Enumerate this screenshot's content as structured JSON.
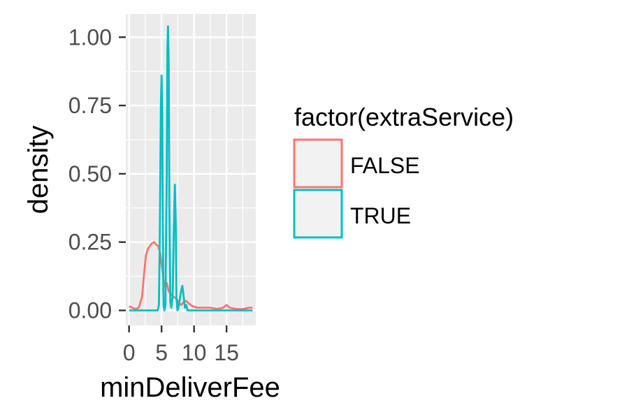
{
  "chart_data": {
    "type": "line",
    "xlabel": "minDeliverFee",
    "ylabel": "density",
    "xlim": [
      -0.5,
      19.5
    ],
    "ylim": [
      -0.055,
      1.085
    ],
    "xticks": [
      0,
      5,
      10,
      15
    ],
    "xtick_labels": [
      "0",
      "5",
      "10",
      "15"
    ],
    "yticks": [
      0,
      0.25,
      0.5,
      0.75,
      1.0
    ],
    "ytick_labels": [
      "0.00",
      "0.25",
      "0.50",
      "0.75",
      "1.00"
    ],
    "grid": true,
    "legend": {
      "title": "factor(extraService)",
      "position": "right",
      "entries": [
        "FALSE",
        "TRUE"
      ]
    },
    "series": [
      {
        "name": "FALSE",
        "color": "#F8766D",
        "x": [
          0,
          0.5,
          1,
          1.5,
          2,
          2.3,
          2.6,
          2.9,
          3.2,
          3.5,
          3.9,
          4.2,
          4.5,
          4.8,
          5.1,
          5.4,
          5.8,
          6.1,
          6.4,
          6.8,
          7.2,
          7.6,
          8.0,
          8.4,
          8.8,
          9.2,
          9.8,
          10.5,
          11.5,
          12.5,
          13.5,
          14.5,
          15.0,
          15.5,
          16.5,
          17.5,
          18.5,
          19.0
        ],
        "y": [
          0.015,
          0.01,
          0.005,
          0.01,
          0.05,
          0.13,
          0.2,
          0.225,
          0.235,
          0.245,
          0.25,
          0.24,
          0.235,
          0.21,
          0.15,
          0.09,
          0.1,
          0.07,
          0.06,
          0.05,
          0.045,
          0.03,
          0.02,
          0.03,
          0.035,
          0.025,
          0.015,
          0.01,
          0.01,
          0.01,
          0.005,
          0.01,
          0.02,
          0.01,
          0.005,
          0.005,
          0.01,
          0.01
        ]
      },
      {
        "name": "TRUE",
        "color": "#00BFC4",
        "x": [
          0,
          4.4,
          4.6,
          4.75,
          4.9,
          5.0,
          5.1,
          5.2,
          5.3,
          5.45,
          5.6,
          5.8,
          5.9,
          6.0,
          6.1,
          6.2,
          6.35,
          6.5,
          6.7,
          6.9,
          7.05,
          7.2,
          7.3,
          7.45,
          7.6,
          7.8,
          8.0,
          8.2,
          8.4,
          8.6,
          8.8,
          9.0,
          19.0
        ],
        "y": [
          0.0,
          0.0,
          0.02,
          0.3,
          0.75,
          0.86,
          0.75,
          0.3,
          0.02,
          0.0,
          0.02,
          0.5,
          0.95,
          1.04,
          0.9,
          0.4,
          0.03,
          0.01,
          0.05,
          0.3,
          0.46,
          0.3,
          0.05,
          0.0,
          0.01,
          0.04,
          0.07,
          0.09,
          0.05,
          0.01,
          0.02,
          0.0,
          0.0
        ]
      }
    ]
  }
}
